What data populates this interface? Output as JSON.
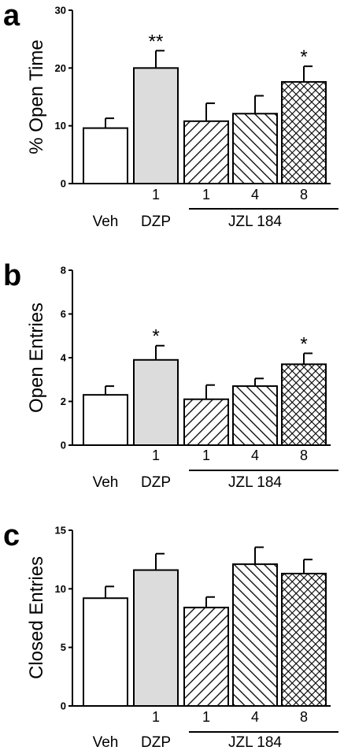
{
  "chart_data": [
    {
      "type": "bar",
      "panel_label": "a",
      "ylabel": "% Open Time",
      "ylim": [
        0,
        30
      ],
      "yticks": [
        "0",
        "10",
        "20",
        "30"
      ],
      "dose_labels": [
        "",
        "1",
        "1",
        "4",
        "8"
      ],
      "group_labels": {
        "veh": "Veh",
        "dzp": "DZP",
        "jzl": "JZL 184"
      },
      "patterns": [
        "none",
        "solid-gray",
        "hatch-forward",
        "hatch-back",
        "crosshatch"
      ],
      "values": [
        9.6,
        20.0,
        10.8,
        12.1,
        17.6
      ],
      "errors": [
        1.7,
        3.0,
        3.1,
        3.1,
        2.7
      ],
      "significance": [
        "",
        "**",
        "",
        "",
        "*"
      ]
    },
    {
      "type": "bar",
      "panel_label": "b",
      "ylabel": "Open Entries",
      "ylim": [
        0,
        8
      ],
      "yticks": [
        "0",
        "2",
        "4",
        "6",
        "8"
      ],
      "dose_labels": [
        "",
        "1",
        "1",
        "4",
        "8"
      ],
      "group_labels": {
        "veh": "Veh",
        "dzp": "DZP",
        "jzl": "JZL 184"
      },
      "patterns": [
        "none",
        "solid-gray",
        "hatch-forward",
        "hatch-back",
        "crosshatch"
      ],
      "values": [
        2.3,
        3.9,
        2.1,
        2.7,
        3.7
      ],
      "errors": [
        0.4,
        0.65,
        0.65,
        0.35,
        0.5
      ],
      "significance": [
        "",
        "*",
        "",
        "",
        "*"
      ]
    },
    {
      "type": "bar",
      "panel_label": "c",
      "ylabel": "Closed Entries",
      "ylim": [
        0,
        15
      ],
      "yticks": [
        "0",
        "5",
        "10",
        "15"
      ],
      "dose_labels": [
        "",
        "1",
        "1",
        "4",
        "8"
      ],
      "group_labels": {
        "veh": "Veh",
        "dzp": "DZP",
        "jzl": "JZL 184"
      },
      "patterns": [
        "none",
        "solid-gray",
        "hatch-forward",
        "hatch-back",
        "crosshatch"
      ],
      "values": [
        9.2,
        11.6,
        8.4,
        12.1,
        11.3
      ],
      "errors": [
        1.0,
        1.4,
        0.9,
        1.45,
        1.2
      ],
      "significance": [
        "",
        "",
        "",
        "",
        ""
      ]
    }
  ],
  "colors": {
    "bar_outline": "#000000",
    "dzp_fill": "#dcdcdc",
    "background": "#ffffff"
  }
}
